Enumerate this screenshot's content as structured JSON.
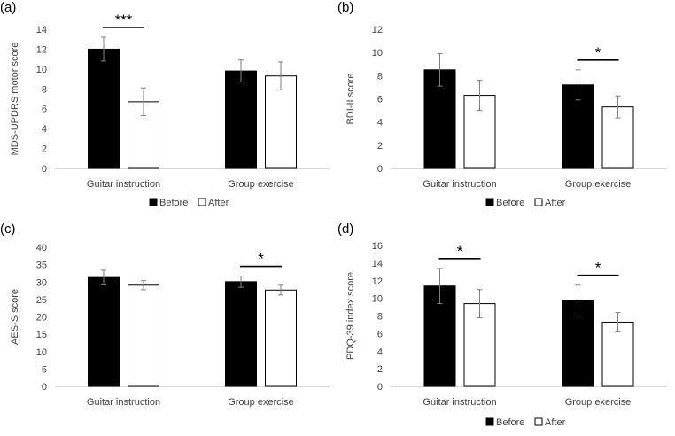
{
  "chart_data": [
    {
      "panel_label": "(a)",
      "type": "bar",
      "ylabel": "MDS-UPDRS motor score",
      "ylim": [
        0,
        14
      ],
      "yticks": [
        0,
        2,
        4,
        6,
        8,
        10,
        12,
        14
      ],
      "categories": [
        "Guitar instruction",
        "Group exercise"
      ],
      "series": [
        {
          "name": "Before",
          "color": "#000000",
          "values": [
            12.0,
            9.8
          ],
          "errors": [
            1.2,
            1.1
          ]
        },
        {
          "name": "After",
          "color": "#ffffff",
          "values": [
            6.7,
            9.3
          ],
          "errors": [
            1.4,
            1.4
          ]
        }
      ],
      "significance": [
        {
          "category_index": 0,
          "label": "***"
        }
      ],
      "legend": [
        "Before",
        "After"
      ]
    },
    {
      "panel_label": "(b)",
      "type": "bar",
      "ylabel": "BDI-II score",
      "ylim": [
        0,
        12
      ],
      "yticks": [
        0,
        2,
        4,
        6,
        8,
        10,
        12
      ],
      "categories": [
        "Guitar instruction",
        "Group exercise"
      ],
      "series": [
        {
          "name": "Before",
          "color": "#000000",
          "values": [
            8.5,
            7.2
          ],
          "errors": [
            1.4,
            1.3
          ]
        },
        {
          "name": "After",
          "color": "#ffffff",
          "values": [
            6.3,
            5.3
          ],
          "errors": [
            1.3,
            0.95
          ]
        }
      ],
      "significance": [
        {
          "category_index": 1,
          "label": "*"
        }
      ],
      "legend": [
        "Before",
        "After"
      ]
    },
    {
      "panel_label": "(c)",
      "type": "bar",
      "ylabel": "AES-S score",
      "ylim": [
        0,
        40
      ],
      "yticks": [
        0,
        5,
        10,
        15,
        20,
        25,
        30,
        35,
        40
      ],
      "categories": [
        "Guitar instruction",
        "Group exercise"
      ],
      "series": [
        {
          "name": "Before",
          "color": "#000000",
          "values": [
            31.3,
            30.1
          ],
          "errors": [
            2.1,
            1.6
          ]
        },
        {
          "name": "After",
          "color": "#ffffff",
          "values": [
            29.1,
            27.7
          ],
          "errors": [
            1.3,
            1.4
          ]
        }
      ],
      "significance": [
        {
          "category_index": 1,
          "label": "*"
        }
      ],
      "legend": []
    },
    {
      "panel_label": "(d)",
      "type": "bar",
      "ylabel": "PDQ-39 index score",
      "ylim": [
        0,
        16
      ],
      "yticks": [
        0,
        2,
        4,
        6,
        8,
        10,
        12,
        14,
        16
      ],
      "categories": [
        "Guitar instruction",
        "Group exercise"
      ],
      "series": [
        {
          "name": "Before",
          "color": "#000000",
          "values": [
            11.4,
            9.8
          ],
          "errors": [
            2.0,
            1.7
          ]
        },
        {
          "name": "After",
          "color": "#ffffff",
          "values": [
            9.4,
            7.3
          ],
          "errors": [
            1.6,
            1.1
          ]
        }
      ],
      "significance": [
        {
          "category_index": 0,
          "label": "*"
        },
        {
          "category_index": 1,
          "label": "*"
        }
      ],
      "legend": [
        "Before",
        "After"
      ]
    }
  ]
}
